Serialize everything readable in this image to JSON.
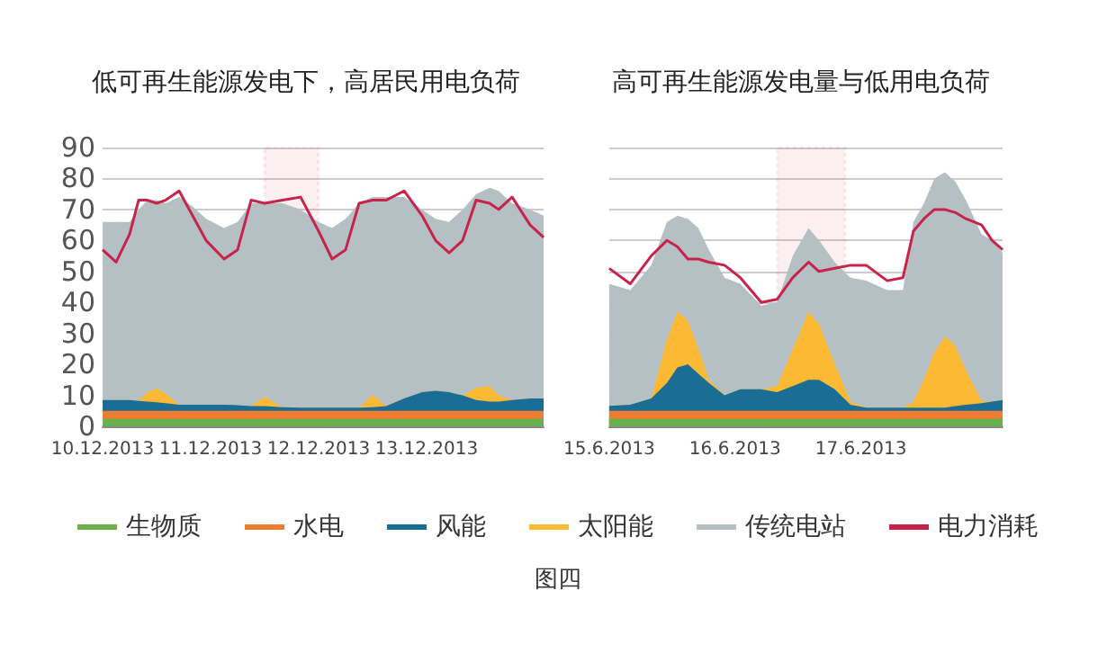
{
  "chart_data": [
    {
      "type": "area",
      "title": "低可再生能源发电下，高居民用电负荷",
      "stacked": true,
      "grid": "y",
      "legend": "bottom",
      "marker": "none",
      "annotations": [
        "图四"
      ],
      "x": [
        "2013-12-10T00:00",
        "2013-12-10T03:00",
        "2013-12-10T06:00",
        "2013-12-10T08:00",
        "2013-12-10T10:00",
        "2013-12-10T12:00",
        "2013-12-10T14:00",
        "2013-12-10T17:00",
        "2013-12-10T20:00",
        "2013-12-10T23:00",
        "2013-12-11T03:00",
        "2013-12-11T06:00",
        "2013-12-11T09:00",
        "2013-12-11T12:00",
        "2013-12-11T16:00",
        "2013-12-11T20:00",
        "2013-12-12T00:00",
        "2013-12-12T03:00",
        "2013-12-12T06:00",
        "2013-12-12T09:00",
        "2013-12-12T12:00",
        "2013-12-12T15:00",
        "2013-12-12T19:00",
        "2013-12-12T23:00",
        "2013-12-13T02:00",
        "2013-12-13T05:00",
        "2013-12-13T08:00",
        "2013-12-13T11:00",
        "2013-12-13T14:00",
        "2013-12-13T16:00",
        "2013-12-13T19:00",
        "2013-12-13T23:00",
        "2013-12-14T02:00"
      ],
      "xlim": [
        "2013-12-10T00:00",
        "2013-12-14T02:00"
      ],
      "xticks": [
        {
          "value": "2013-12-10",
          "label": "10.12.2013"
        },
        {
          "value": "2013-12-11",
          "label": "11.12.2013"
        },
        {
          "value": "2013-12-12",
          "label": "12.12.2013"
        },
        {
          "value": "2013-12-13",
          "label": "13.12.2013"
        }
      ],
      "ylim": [
        0,
        90
      ],
      "yticks": [
        0,
        10,
        20,
        30,
        40,
        50,
        60,
        70,
        80,
        90
      ],
      "bands": [
        {
          "axis": "x",
          "from": "2013-12-11T12:00",
          "to": "2013-12-12T00:00",
          "color": "#d0344f"
        }
      ],
      "series": [
        {
          "name": "生物质",
          "color": "#6ab04c",
          "values": [
            2.5,
            2.5,
            2.5,
            2.5,
            2.5,
            2.5,
            2.5,
            2.5,
            2.5,
            2.5,
            2.5,
            2.5,
            2.5,
            2.5,
            2.5,
            2.5,
            2.5,
            2.5,
            2.5,
            2.5,
            2.5,
            2.5,
            2.5,
            2.5,
            2.5,
            2.5,
            2.5,
            2.5,
            2.5,
            2.5,
            2.5,
            2.5,
            2.5
          ]
        },
        {
          "name": "水电",
          "color": "#ee7d31",
          "values": [
            2.5,
            2.5,
            2.5,
            2.5,
            2.5,
            2.5,
            2.5,
            2.5,
            2.5,
            2.5,
            2.5,
            2.5,
            2.5,
            2.5,
            2.5,
            2.5,
            2.5,
            2.5,
            2.5,
            2.5,
            2.5,
            2.5,
            2.5,
            2.5,
            2.5,
            2.5,
            2.5,
            2.5,
            2.5,
            2.5,
            2.5,
            2.5,
            2.5
          ]
        },
        {
          "name": "风能",
          "color": "#1a6e95",
          "values": [
            3.5,
            3.5,
            3.5,
            3.2,
            3,
            2.8,
            2.5,
            2,
            2,
            2,
            2,
            1.8,
            1.5,
            1.5,
            1.2,
            1,
            1,
            1,
            1,
            1,
            1.2,
            1.5,
            4,
            6,
            6.5,
            6,
            5,
            3.5,
            3,
            3,
            3.5,
            4,
            4
          ]
        },
        {
          "name": "太阳能",
          "color": "#fbb934",
          "values": [
            0,
            0,
            0,
            0,
            3,
            4.5,
            3,
            0,
            0,
            0,
            0,
            0,
            0,
            3,
            0,
            0,
            0,
            0,
            0,
            0,
            4,
            0,
            0,
            0,
            0,
            0,
            0,
            4,
            5,
            2,
            0,
            0,
            0
          ]
        },
        {
          "name": "传统电站",
          "color": "#b5c0c4",
          "values": [
            57.5,
            57.5,
            57.5,
            61.8,
            62,
            60.7,
            61.5,
            67,
            64,
            60,
            57,
            59.2,
            65.5,
            62.5,
            65.8,
            64,
            60,
            58,
            61,
            66,
            63.8,
            67.5,
            65,
            59,
            55.5,
            55,
            60,
            62.5,
            64,
            66,
            63.5,
            61,
            59
          ]
        },
        {
          "name": "电力消耗",
          "type": "line",
          "color": "#c8234a",
          "values": [
            57,
            53,
            62,
            73,
            73,
            72,
            73,
            76,
            68,
            60,
            54,
            57,
            73,
            72,
            73,
            74,
            63,
            54,
            57,
            72,
            73,
            73,
            76,
            68,
            60,
            56,
            60,
            73,
            72,
            70,
            74,
            65,
            61
          ]
        }
      ]
    },
    {
      "type": "area",
      "title": "高可再生能源发电量与低用电负荷",
      "stacked": true,
      "grid": "y",
      "legend": false,
      "marker": "none",
      "tick_labels": "x",
      "x": [
        "2013-06-15T00:00",
        "2013-06-15T04:00",
        "2013-06-15T08:00",
        "2013-06-15T11:00",
        "2013-06-15T13:00",
        "2013-06-15T15:00",
        "2013-06-15T17:00",
        "2013-06-15T19:00",
        "2013-06-15T22:00",
        "2013-06-16T01:00",
        "2013-06-16T05:00",
        "2013-06-16T08:00",
        "2013-06-16T11:00",
        "2013-06-16T14:00",
        "2013-06-16T16:00",
        "2013-06-16T19:00",
        "2013-06-16T22:00",
        "2013-06-17T01:00",
        "2013-06-17T05:00",
        "2013-06-17T08:00",
        "2013-06-17T10:00",
        "2013-06-17T12:00",
        "2013-06-17T14:00",
        "2013-06-17T16:00",
        "2013-06-17T18:00",
        "2013-06-17T20:00",
        "2013-06-17T23:00",
        "2013-06-18T01:00",
        "2013-06-18T03:00"
      ],
      "xlim": [
        "2013-06-15T00:00",
        "2013-06-18T03:00"
      ],
      "xticks": [
        {
          "value": "2013-06-15",
          "label": "15.6.2013"
        },
        {
          "value": "2013-06-16",
          "label": "16.6.2013"
        },
        {
          "value": "2013-06-17",
          "label": "17.6.2013"
        }
      ],
      "ylim": [
        0,
        90
      ],
      "yticks": [
        0,
        10,
        20,
        30,
        40,
        50,
        60,
        70,
        80,
        90
      ],
      "bands": [
        {
          "axis": "x",
          "from": "2013-06-16T08:00",
          "to": "2013-06-16T21:00",
          "color": "#d0344f"
        }
      ],
      "series": [
        {
          "color": "#6ab04c",
          "values": [
            2.5,
            2.5,
            2.5,
            2.5,
            2.5,
            2.5,
            2.5,
            2.5,
            2.5,
            2.5,
            2.5,
            2.5,
            2.5,
            2.5,
            2.5,
            2.5,
            2.5,
            2.5,
            2.5,
            2.5,
            2.5,
            2.5,
            2.5,
            2.5,
            2.5,
            2.5,
            2.5,
            2.5,
            2.5
          ]
        },
        {
          "color": "#ee7d31",
          "values": [
            2.5,
            2.5,
            2.5,
            2.5,
            2.5,
            2.5,
            2.5,
            2.5,
            2.5,
            2.5,
            2.5,
            2.5,
            2.5,
            2.5,
            2.5,
            2.5,
            2.5,
            2.5,
            2.5,
            2.5,
            2.5,
            2.5,
            2.5,
            2.5,
            2.5,
            2.5,
            2.5,
            2.5,
            2.5
          ]
        },
        {
          "color": "#1a6e95",
          "values": [
            1.6,
            2,
            4,
            9,
            14,
            15,
            12,
            9,
            5,
            7,
            7,
            6,
            8,
            10,
            10,
            7,
            2,
            1,
            1,
            1,
            1,
            1,
            1,
            1,
            1.5,
            2,
            2.5,
            3,
            3.5
          ]
        },
        {
          "color": "#fbb934",
          "values": [
            0,
            0,
            0,
            14,
            18,
            14,
            8,
            1,
            0,
            0,
            0,
            2,
            12,
            22,
            18,
            8,
            1,
            0,
            0,
            0,
            2,
            9,
            18,
            23,
            19.5,
            11,
            0.5,
            0,
            0
          ]
        },
        {
          "color": "#b5c0c4",
          "values": [
            39.4,
            37,
            43,
            38,
            31,
            33,
            39,
            42,
            38,
            34,
            27,
            27,
            30,
            27,
            27,
            33,
            40,
            41,
            38,
            38,
            58,
            57,
            56,
            53,
            53,
            55,
            54,
            52,
            47.5
          ]
        },
        {
          "type": "line",
          "color": "#c8234a",
          "values": [
            51,
            46,
            55,
            60,
            58,
            54,
            54,
            53,
            52,
            48,
            40,
            41,
            48,
            53,
            50,
            51,
            52,
            52,
            47,
            48,
            63,
            67,
            70,
            70,
            69,
            67,
            65,
            60,
            57
          ]
        }
      ]
    }
  ]
}
